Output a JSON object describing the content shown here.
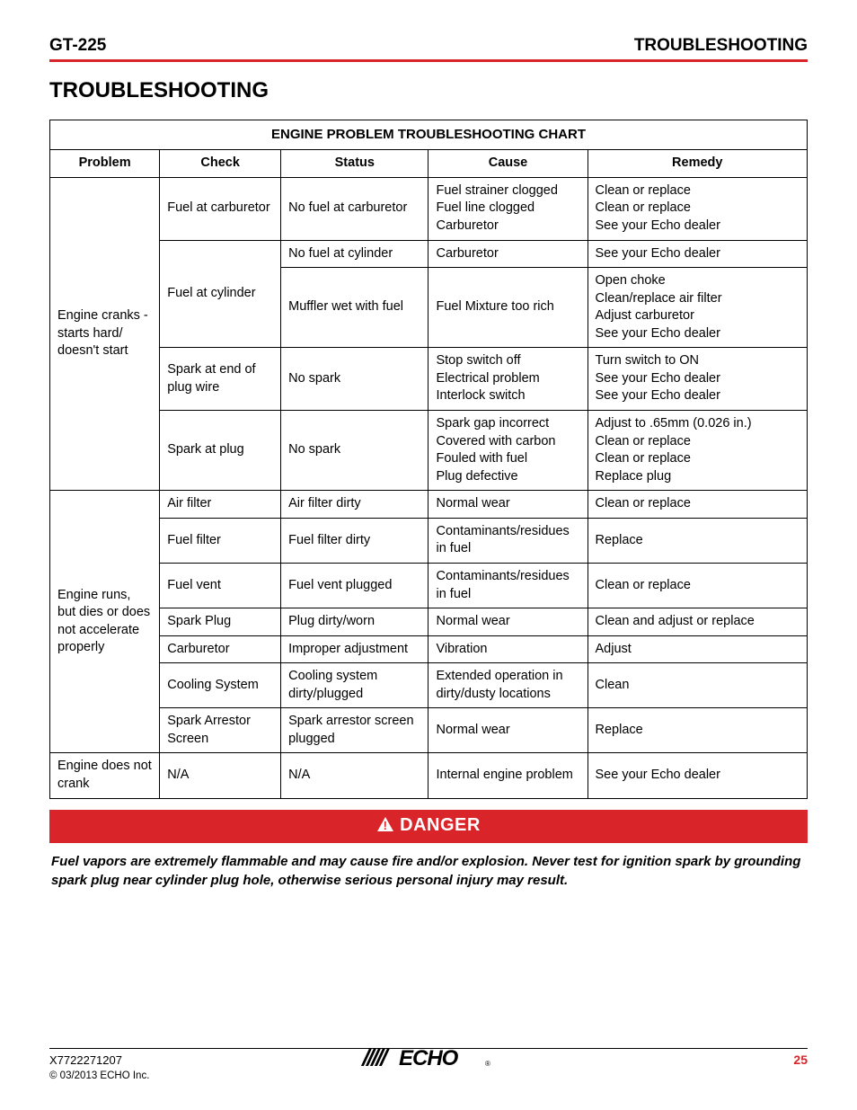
{
  "header": {
    "model": "GT-225",
    "section": "TROUBLESHOOTING"
  },
  "section_title": "TROUBLESHOOTING",
  "table": {
    "title": "ENGINE PROBLEM TROUBLESHOOTING CHART",
    "columns": [
      "Problem",
      "Check",
      "Status",
      "Cause",
      "Remedy"
    ],
    "groups": [
      {
        "problem": "Engine cranks - starts hard/ doesn't start",
        "rows": [
          {
            "check": "Fuel at carburetor",
            "check_span": 1,
            "status": "No fuel at carburetor",
            "cause": "Fuel strainer clogged\nFuel line clogged\nCarburetor",
            "remedy": "Clean or replace\nClean or replace\nSee your Echo dealer"
          },
          {
            "check": "Fuel at cylinder",
            "check_span": 2,
            "status": "No fuel at cylinder",
            "cause": "Carburetor",
            "remedy": "See your Echo dealer"
          },
          {
            "status": "Muffler wet with fuel",
            "cause": "Fuel Mixture too rich",
            "remedy": "Open choke\nClean/replace air filter\nAdjust carburetor\nSee your Echo dealer"
          },
          {
            "check": "Spark at end of plug wire",
            "check_span": 1,
            "status": "No spark",
            "cause": "Stop switch off\nElectrical problem\nInterlock switch",
            "remedy": "Turn switch to ON\nSee your Echo dealer\nSee your Echo dealer"
          },
          {
            "check": "Spark at plug",
            "check_span": 1,
            "status": "No spark",
            "cause": "Spark gap incorrect\nCovered with carbon\nFouled with fuel\nPlug defective",
            "remedy": "Adjust to .65mm (0.026 in.)\nClean or replace\nClean or replace\nReplace plug"
          }
        ]
      },
      {
        "problem": "Engine runs, but dies or does not accelerate properly",
        "rows": [
          {
            "check": "Air filter",
            "status": "Air filter dirty",
            "cause": "Normal wear",
            "remedy": "Clean or replace"
          },
          {
            "check": "Fuel filter",
            "status": "Fuel filter dirty",
            "cause": "Contaminants/residues in fuel",
            "remedy": "Replace"
          },
          {
            "check": "Fuel vent",
            "status": "Fuel vent plugged",
            "cause": "Contaminants/residues in fuel",
            "remedy": "Clean or replace"
          },
          {
            "check": "Spark Plug",
            "status": "Plug dirty/worn",
            "cause": "Normal wear",
            "remedy": "Clean and adjust or replace"
          },
          {
            "check": "Carburetor",
            "status": "Improper adjustment",
            "cause": "Vibration",
            "remedy": "Adjust"
          },
          {
            "check": "Cooling System",
            "status": "Cooling system dirty/plugged",
            "cause": "Extended operation in dirty/dusty locations",
            "remedy": "Clean"
          },
          {
            "check": "Spark Arrestor Screen",
            "status": "Spark arrestor screen plugged",
            "cause": "Normal wear",
            "remedy": "Replace"
          }
        ]
      },
      {
        "problem": "Engine does not crank",
        "rows": [
          {
            "check": "N/A",
            "status": "N/A",
            "cause": "Internal engine problem",
            "remedy": "See your Echo dealer"
          }
        ]
      }
    ]
  },
  "danger": {
    "label": "DANGER",
    "text": "Fuel vapors are extremely flammable and may cause fire and/or explosion. Never test for ignition spark by grounding spark plug near cylinder plug hole, otherwise serious personal injury may result."
  },
  "footer": {
    "doc": "X7722271207",
    "copyright": "© 03/2013 ECHO Inc.",
    "page": "25",
    "logo_text": "ECHO"
  },
  "colors": {
    "brand_red": "#d9252a"
  }
}
